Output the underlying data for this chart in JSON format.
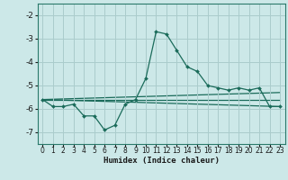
{
  "title": "",
  "xlabel": "Humidex (Indice chaleur)",
  "bg_color": "#cce8e8",
  "grid_color": "#aacccc",
  "line_color": "#1a6b5a",
  "xlim": [
    -0.5,
    23.5
  ],
  "ylim": [
    -7.5,
    -1.5
  ],
  "yticks": [
    -7,
    -6,
    -5,
    -4,
    -3,
    -2
  ],
  "xticks": [
    0,
    1,
    2,
    3,
    4,
    5,
    6,
    7,
    8,
    9,
    10,
    11,
    12,
    13,
    14,
    15,
    16,
    17,
    18,
    19,
    20,
    21,
    22,
    23
  ],
  "series_main": {
    "x": [
      0,
      1,
      2,
      3,
      4,
      5,
      6,
      7,
      8,
      9,
      10,
      11,
      12,
      13,
      14,
      15,
      16,
      17,
      18,
      19,
      20,
      21,
      22,
      23
    ],
    "y": [
      -5.6,
      -5.9,
      -5.9,
      -5.8,
      -6.3,
      -6.3,
      -6.9,
      -6.7,
      -5.8,
      -5.6,
      -4.7,
      -2.7,
      -2.8,
      -3.5,
      -4.2,
      -4.4,
      -5.0,
      -5.1,
      -5.2,
      -5.1,
      -5.2,
      -5.1,
      -5.9,
      -5.9
    ]
  },
  "trend_lines": [
    {
      "x": [
        0,
        23
      ],
      "y": [
        -5.6,
        -5.9
      ]
    },
    {
      "x": [
        0,
        23
      ],
      "y": [
        -5.6,
        -5.6
      ]
    },
    {
      "x": [
        0,
        23
      ],
      "y": [
        -5.6,
        -5.3
      ]
    }
  ]
}
